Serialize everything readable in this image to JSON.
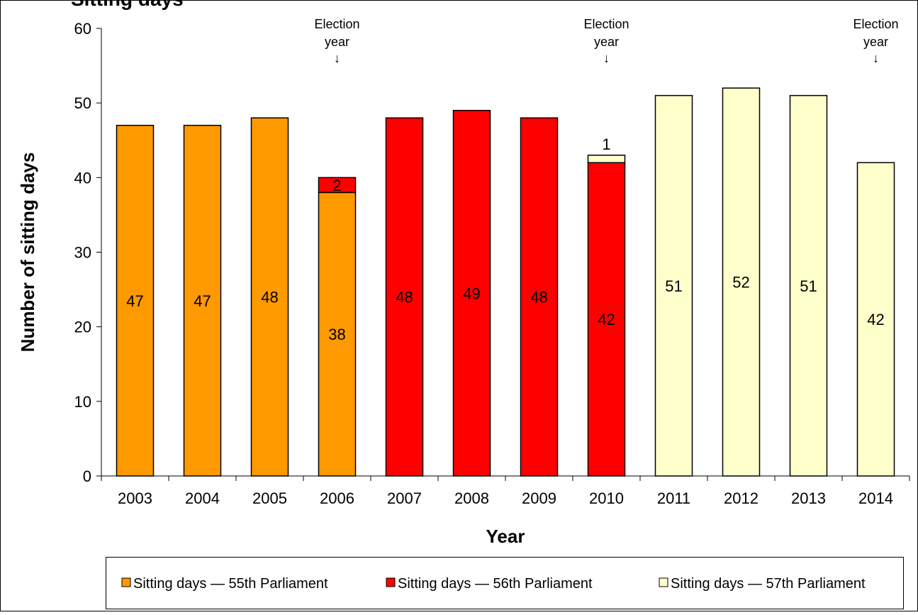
{
  "chart_data": {
    "type": "bar",
    "stacked": true,
    "title": "Sitting days",
    "xlabel": "Year",
    "ylabel": "Number of sitting days",
    "ylim": [
      0,
      60
    ],
    "yticks": [
      0,
      10,
      20,
      30,
      40,
      50,
      60
    ],
    "grid": false,
    "legend_position": "bottom",
    "categories": [
      "2003",
      "2004",
      "2005",
      "2006",
      "2007",
      "2008",
      "2009",
      "2010",
      "2011",
      "2012",
      "2013",
      "2014"
    ],
    "series": [
      {
        "name": "Sitting days — 55th Parliament",
        "color": "#FF9900",
        "values": [
          47,
          47,
          48,
          38,
          0,
          0,
          0,
          0,
          0,
          0,
          0,
          0
        ]
      },
      {
        "name": "Sitting days — 56th Parliament",
        "color": "#FF0000",
        "values": [
          0,
          0,
          0,
          2,
          48,
          49,
          48,
          42,
          0,
          0,
          0,
          0
        ]
      },
      {
        "name": "Sitting days — 57th Parliament",
        "color": "#FFFFCC",
        "values": [
          0,
          0,
          0,
          0,
          0,
          0,
          0,
          1,
          51,
          52,
          51,
          42
        ]
      }
    ],
    "annotations": [
      {
        "category": "2006",
        "line1": "Election",
        "line2": "year",
        "arrow": "↓"
      },
      {
        "category": "2010",
        "line1": "Election",
        "line2": "year",
        "arrow": "↓"
      },
      {
        "category": "2014",
        "line1": "Election",
        "line2": "year",
        "arrow": "↓"
      }
    ]
  }
}
